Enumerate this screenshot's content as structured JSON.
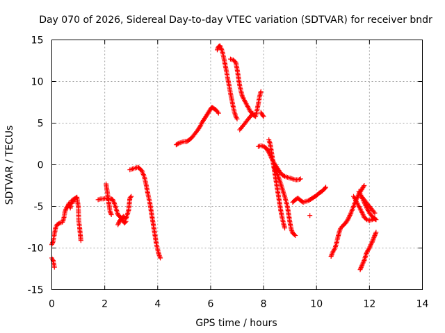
{
  "chart_data": {
    "type": "scatter",
    "title": "Day 070 of 2026, Sidereal Day-to-day VTEC variation (SDTVAR) for receiver bndr",
    "xlabel": "GPS time / hours",
    "ylabel": "SDTVAR / TECUs",
    "xlim": [
      0,
      14
    ],
    "ylim": [
      -15,
      15
    ],
    "xticks": [
      0,
      2,
      4,
      6,
      8,
      10,
      12,
      14
    ],
    "yticks": [
      -15,
      -10,
      -5,
      0,
      5,
      10,
      15
    ],
    "xtick_labels": [
      "0",
      "2",
      "4",
      "6",
      "8",
      "10",
      "12",
      "14"
    ],
    "ytick_labels": [
      "-15",
      "-10",
      "-5",
      "0",
      "5",
      "10",
      "15"
    ],
    "grid": true,
    "marker": "plus",
    "color": "#ff0000",
    "segments": [
      [
        [
          0.0,
          -11.2
        ],
        [
          0.05,
          -11.5
        ],
        [
          0.1,
          -12.3
        ]
      ],
      [
        [
          0.0,
          -9.6
        ],
        [
          0.05,
          -9.2
        ],
        [
          0.1,
          -8.3
        ],
        [
          0.15,
          -7.5
        ],
        [
          0.2,
          -7.2
        ],
        [
          0.3,
          -7.0
        ],
        [
          0.4,
          -6.9
        ],
        [
          0.45,
          -6.5
        ],
        [
          0.5,
          -5.6
        ],
        [
          0.55,
          -5.2
        ],
        [
          0.6,
          -5.0
        ],
        [
          0.7,
          -4.8
        ],
        [
          0.8,
          -4.2
        ],
        [
          0.9,
          -4.0
        ],
        [
          0.95,
          -3.9
        ],
        [
          1.0,
          -5.0
        ],
        [
          1.02,
          -6.8
        ],
        [
          1.05,
          -7.5
        ],
        [
          1.08,
          -8.5
        ],
        [
          1.1,
          -9.1
        ]
      ],
      [
        [
          0.6,
          -5.0
        ],
        [
          0.65,
          -4.6
        ],
        [
          0.7,
          -5.2
        ],
        [
          0.75,
          -4.3
        ],
        [
          0.85,
          -4.4
        ]
      ],
      [
        [
          1.75,
          -4.2
        ],
        [
          1.85,
          -4.1
        ],
        [
          1.95,
          -4.1
        ],
        [
          2.05,
          -4.0
        ],
        [
          2.15,
          -4.1
        ],
        [
          2.25,
          -4.1
        ],
        [
          2.3,
          -4.2
        ],
        [
          2.35,
          -4.5
        ],
        [
          2.4,
          -5.0
        ],
        [
          2.45,
          -5.5
        ],
        [
          2.5,
          -6.0
        ],
        [
          2.55,
          -6.2
        ],
        [
          2.6,
          -6.3
        ],
        [
          2.65,
          -6.5
        ],
        [
          2.7,
          -6.8
        ],
        [
          2.75,
          -7.0
        ],
        [
          2.8,
          -6.8
        ]
      ],
      [
        [
          2.05,
          -2.3
        ],
        [
          2.1,
          -3.3
        ],
        [
          2.15,
          -4.5
        ],
        [
          2.2,
          -5.6
        ],
        [
          2.25,
          -6.0
        ]
      ],
      [
        [
          2.5,
          -7.2
        ],
        [
          2.55,
          -6.8
        ],
        [
          2.6,
          -6.6
        ],
        [
          2.7,
          -6.2
        ],
        [
          2.8,
          -6.5
        ],
        [
          2.85,
          -6.0
        ],
        [
          2.9,
          -5.5
        ],
        [
          2.95,
          -4.0
        ],
        [
          3.0,
          -3.8
        ]
      ],
      [
        [
          2.95,
          -0.6
        ],
        [
          3.05,
          -0.5
        ],
        [
          3.15,
          -0.4
        ],
        [
          3.25,
          -0.3
        ],
        [
          3.3,
          -0.4
        ],
        [
          3.4,
          -0.7
        ],
        [
          3.5,
          -1.5
        ],
        [
          3.55,
          -2.2
        ],
        [
          3.6,
          -3.0
        ],
        [
          3.65,
          -3.8
        ],
        [
          3.7,
          -4.5
        ],
        [
          3.75,
          -5.5
        ],
        [
          3.8,
          -6.5
        ],
        [
          3.85,
          -7.5
        ],
        [
          3.9,
          -8.5
        ],
        [
          3.95,
          -9.5
        ],
        [
          4.0,
          -10.2
        ],
        [
          4.05,
          -10.8
        ],
        [
          4.1,
          -11.2
        ]
      ],
      [
        [
          4.7,
          2.4
        ],
        [
          4.8,
          2.6
        ],
        [
          4.9,
          2.7
        ],
        [
          5.0,
          2.8
        ],
        [
          5.1,
          2.8
        ],
        [
          5.2,
          3.0
        ],
        [
          5.3,
          3.3
        ],
        [
          5.4,
          3.7
        ],
        [
          5.5,
          4.1
        ],
        [
          5.6,
          4.6
        ],
        [
          5.7,
          5.2
        ],
        [
          5.8,
          5.7
        ],
        [
          5.9,
          6.2
        ],
        [
          6.0,
          6.7
        ],
        [
          6.05,
          6.9
        ],
        [
          6.1,
          6.8
        ],
        [
          6.2,
          6.6
        ],
        [
          6.3,
          6.2
        ]
      ],
      [
        [
          6.25,
          13.8
        ],
        [
          6.3,
          14.2
        ],
        [
          6.35,
          14.3
        ],
        [
          6.4,
          14.0
        ],
        [
          6.45,
          13.5
        ],
        [
          6.5,
          12.8
        ],
        [
          6.55,
          12.0
        ],
        [
          6.6,
          11.2
        ],
        [
          6.65,
          10.3
        ],
        [
          6.7,
          9.5
        ],
        [
          6.75,
          8.6
        ],
        [
          6.8,
          7.8
        ],
        [
          6.85,
          7.0
        ],
        [
          6.9,
          6.3
        ],
        [
          6.95,
          5.8
        ],
        [
          7.0,
          5.5
        ]
      ],
      [
        [
          6.75,
          12.7
        ],
        [
          6.85,
          12.6
        ],
        [
          6.95,
          12.3
        ],
        [
          7.0,
          11.5
        ],
        [
          7.05,
          10.5
        ],
        [
          7.1,
          9.5
        ],
        [
          7.15,
          8.8
        ],
        [
          7.2,
          8.2
        ],
        [
          7.3,
          7.6
        ],
        [
          7.4,
          7.0
        ],
        [
          7.5,
          6.4
        ],
        [
          7.6,
          6.0
        ],
        [
          7.7,
          5.8
        ],
        [
          7.75,
          6.5
        ],
        [
          7.8,
          7.3
        ],
        [
          7.85,
          8.2
        ],
        [
          7.9,
          8.8
        ]
      ],
      [
        [
          7.1,
          4.2
        ],
        [
          7.2,
          4.6
        ],
        [
          7.3,
          5.0
        ],
        [
          7.4,
          5.4
        ],
        [
          7.5,
          5.8
        ],
        [
          7.6,
          6.2
        ]
      ],
      [
        [
          7.9,
          6.3
        ],
        [
          7.95,
          6.0
        ],
        [
          8.0,
          5.8
        ]
      ],
      [
        [
          7.8,
          2.2
        ],
        [
          7.9,
          2.3
        ],
        [
          8.0,
          2.2
        ],
        [
          8.1,
          2.0
        ],
        [
          8.2,
          1.5
        ],
        [
          8.3,
          0.8
        ],
        [
          8.4,
          0.2
        ],
        [
          8.5,
          -0.3
        ],
        [
          8.6,
          -0.8
        ],
        [
          8.7,
          -1.2
        ],
        [
          8.8,
          -1.4
        ],
        [
          8.9,
          -1.5
        ],
        [
          9.0,
          -1.6
        ],
        [
          9.1,
          -1.7
        ],
        [
          9.2,
          -1.8
        ],
        [
          9.3,
          -1.8
        ],
        [
          9.4,
          -1.7
        ]
      ],
      [
        [
          8.2,
          3.0
        ],
        [
          8.25,
          2.5
        ],
        [
          8.3,
          1.5
        ],
        [
          8.35,
          0.5
        ],
        [
          8.4,
          -0.5
        ],
        [
          8.45,
          -1.5
        ],
        [
          8.5,
          -2.5
        ],
        [
          8.55,
          -3.5
        ],
        [
          8.6,
          -4.5
        ],
        [
          8.65,
          -5.5
        ],
        [
          8.7,
          -6.3
        ],
        [
          8.75,
          -7.0
        ],
        [
          8.8,
          -7.6
        ]
      ],
      [
        [
          8.4,
          -0.3
        ],
        [
          8.5,
          -1.0
        ],
        [
          8.6,
          -1.8
        ],
        [
          8.7,
          -2.8
        ],
        [
          8.8,
          -3.8
        ],
        [
          8.9,
          -5.0
        ],
        [
          8.95,
          -6.0
        ],
        [
          9.0,
          -7.0
        ],
        [
          9.05,
          -7.8
        ],
        [
          9.1,
          -8.2
        ],
        [
          9.2,
          -8.5
        ]
      ],
      [
        [
          9.1,
          -4.5
        ],
        [
          9.2,
          -4.2
        ],
        [
          9.3,
          -4.0
        ],
        [
          9.4,
          -4.3
        ],
        [
          9.5,
          -4.5
        ],
        [
          9.6,
          -4.4
        ],
        [
          9.7,
          -4.3
        ],
        [
          9.8,
          -4.1
        ],
        [
          9.9,
          -3.9
        ],
        [
          10.0,
          -3.7
        ],
        [
          10.1,
          -3.4
        ],
        [
          10.2,
          -3.2
        ],
        [
          10.3,
          -2.9
        ],
        [
          10.35,
          -2.7
        ]
      ],
      [
        [
          9.75,
          -6.1
        ]
      ],
      [
        [
          10.55,
          -11.0
        ],
        [
          10.6,
          -10.6
        ],
        [
          10.7,
          -10.0
        ],
        [
          10.75,
          -9.5
        ],
        [
          10.8,
          -8.8
        ],
        [
          10.85,
          -8.2
        ],
        [
          10.9,
          -7.7
        ],
        [
          11.0,
          -7.3
        ],
        [
          11.1,
          -7.0
        ],
        [
          11.2,
          -6.5
        ],
        [
          11.3,
          -5.8
        ],
        [
          11.4,
          -5.0
        ],
        [
          11.5,
          -4.2
        ],
        [
          11.6,
          -3.5
        ],
        [
          11.7,
          -3.0
        ],
        [
          11.8,
          -2.5
        ]
      ],
      [
        [
          11.4,
          -3.8
        ],
        [
          11.5,
          -4.4
        ],
        [
          11.6,
          -5.0
        ],
        [
          11.7,
          -5.6
        ],
        [
          11.8,
          -6.3
        ],
        [
          11.9,
          -6.6
        ],
        [
          12.0,
          -6.7
        ],
        [
          12.1,
          -6.6
        ],
        [
          12.2,
          -6.4
        ]
      ],
      [
        [
          11.6,
          -3.2
        ],
        [
          11.7,
          -3.8
        ],
        [
          11.8,
          -4.2
        ],
        [
          11.9,
          -4.6
        ],
        [
          12.0,
          -5.0
        ],
        [
          12.1,
          -5.4
        ],
        [
          12.2,
          -5.8
        ]
      ],
      [
        [
          11.7,
          -3.8
        ],
        [
          11.8,
          -4.5
        ],
        [
          11.9,
          -5.2
        ],
        [
          12.0,
          -5.8
        ],
        [
          12.1,
          -6.2
        ],
        [
          12.2,
          -6.5
        ],
        [
          12.25,
          -6.6
        ]
      ],
      [
        [
          11.65,
          -12.6
        ],
        [
          11.7,
          -12.2
        ],
        [
          11.8,
          -11.5
        ],
        [
          11.9,
          -10.5
        ],
        [
          12.0,
          -10.0
        ],
        [
          12.05,
          -9.6
        ],
        [
          12.1,
          -9.3
        ],
        [
          12.15,
          -8.9
        ],
        [
          12.2,
          -8.5
        ],
        [
          12.25,
          -8.1
        ]
      ]
    ]
  }
}
